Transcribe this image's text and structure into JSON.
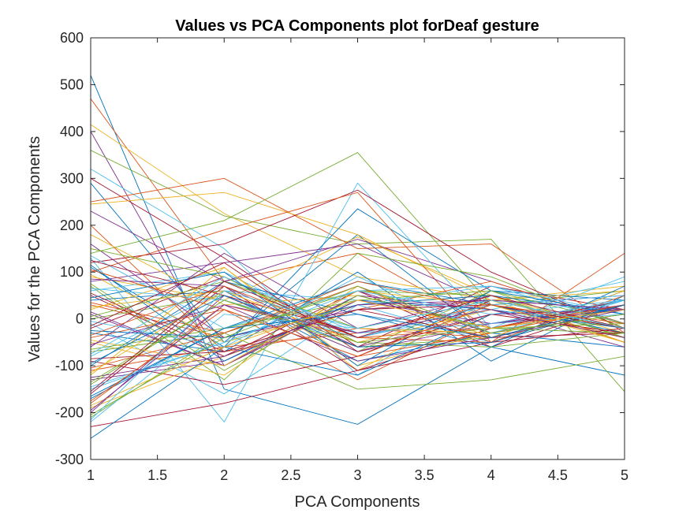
{
  "chart_data": {
    "type": "line",
    "title": "Values vs PCA Components plot forDeaf gesture",
    "xlabel": "PCA Components",
    "ylabel": "Values for the PCA Components",
    "xlim": [
      1,
      5
    ],
    "ylim": [
      -300,
      600
    ],
    "x": [
      1,
      2,
      3,
      4,
      5
    ],
    "x_ticks": [
      "1",
      "1.5",
      "2",
      "2.5",
      "3",
      "3.5",
      "4",
      "4.5",
      "5"
    ],
    "y_ticks": [
      "-300",
      "-200",
      "-100",
      "0",
      "100",
      "200",
      "300",
      "400",
      "500",
      "600"
    ],
    "grid": false,
    "legend": "none",
    "colors": [
      "#0072BD",
      "#D95319",
      "#EDB120",
      "#7E2F8E",
      "#77AC30",
      "#4DBEEE",
      "#A2142F"
    ],
    "series": [
      {
        "values": [
          520,
          -150,
          -225,
          -60,
          -120
        ]
      },
      {
        "values": [
          470,
          80,
          140,
          -20,
          30
        ]
      },
      {
        "values": [
          415,
          225,
          90,
          40,
          -50
        ]
      },
      {
        "values": [
          400,
          -100,
          60,
          -30,
          10
        ]
      },
      {
        "values": [
          360,
          220,
          160,
          170,
          -155
        ]
      },
      {
        "values": [
          320,
          150,
          -120,
          50,
          -40
        ]
      },
      {
        "values": [
          300,
          130,
          -60,
          70,
          20
        ]
      },
      {
        "values": [
          290,
          -50,
          180,
          -40,
          60
        ]
      },
      {
        "values": [
          250,
          300,
          150,
          160,
          -30
        ]
      },
      {
        "values": [
          245,
          270,
          180,
          40,
          70
        ]
      },
      {
        "values": [
          230,
          80,
          170,
          80,
          -10
        ]
      },
      {
        "values": [
          140,
          210,
          355,
          30,
          60
        ]
      },
      {
        "values": [
          130,
          -220,
          290,
          -20,
          90
        ]
      },
      {
        "values": [
          120,
          160,
          275,
          100,
          -20
        ]
      },
      {
        "values": [
          110,
          -60,
          235,
          60,
          40
        ]
      },
      {
        "values": [
          100,
          190,
          270,
          -50,
          140
        ]
      },
      {
        "values": [
          90,
          40,
          175,
          50,
          -30
        ]
      },
      {
        "values": [
          80,
          120,
          160,
          30,
          50
        ]
      },
      {
        "values": [
          70,
          -130,
          140,
          90,
          -20
        ]
      },
      {
        "values": [
          60,
          100,
          -40,
          20,
          80
        ]
      },
      {
        "values": [
          50,
          -80,
          60,
          -60,
          30
        ]
      },
      {
        "values": [
          40,
          60,
          -90,
          -30,
          -60
        ]
      },
      {
        "values": [
          30,
          -40,
          20,
          80,
          -10
        ]
      },
      {
        "values": [
          20,
          110,
          -110,
          40,
          60
        ]
      },
      {
        "values": [
          10,
          -100,
          50,
          -20,
          20
        ]
      },
      {
        "values": [
          0,
          50,
          -70,
          60,
          -40
        ]
      },
      {
        "values": [
          -10,
          -160,
          30,
          -50,
          40
        ]
      },
      {
        "values": [
          -20,
          90,
          -40,
          30,
          -20
        ]
      },
      {
        "values": [
          -30,
          -70,
          100,
          -90,
          50
        ]
      },
      {
        "values": [
          -40,
          20,
          -130,
          10,
          -30
        ]
      },
      {
        "values": [
          -50,
          -120,
          70,
          -40,
          60
        ]
      },
      {
        "values": [
          -60,
          140,
          -20,
          50,
          -50
        ]
      },
      {
        "values": [
          -70,
          -30,
          -150,
          -130,
          -80
        ]
      },
      {
        "values": [
          -80,
          60,
          40,
          -10,
          10
        ]
      },
      {
        "values": [
          -90,
          -140,
          -80,
          40,
          -20
        ]
      },
      {
        "values": [
          -100,
          80,
          10,
          -60,
          70
        ]
      },
      {
        "values": [
          -110,
          -60,
          -30,
          30,
          -40
        ]
      },
      {
        "values": [
          -120,
          110,
          -100,
          -30,
          30
        ]
      },
      {
        "values": [
          -130,
          -90,
          50,
          20,
          -60
        ]
      },
      {
        "values": [
          -140,
          40,
          -60,
          -40,
          20
        ]
      },
      {
        "values": [
          -150,
          -50,
          30,
          70,
          -10
        ]
      },
      {
        "values": [
          -160,
          70,
          -110,
          -20,
          40
        ]
      },
      {
        "values": [
          -170,
          -20,
          80,
          30,
          -30
        ]
      },
      {
        "values": [
          -180,
          30,
          -40,
          -50,
          50
        ]
      },
      {
        "values": [
          -190,
          -80,
          20,
          40,
          -20
        ]
      },
      {
        "values": [
          -200,
          50,
          -70,
          -10,
          30
        ]
      },
      {
        "values": [
          -210,
          -30,
          60,
          50,
          -40
        ]
      },
      {
        "values": [
          -220,
          10,
          -20,
          -30,
          10
        ]
      },
      {
        "values": [
          -230,
          -180,
          -110,
          -50,
          -20
        ]
      },
      {
        "values": [
          -255,
          -60,
          -120,
          10,
          20
        ]
      },
      {
        "values": [
          200,
          -70,
          -20,
          -40,
          30
        ]
      },
      {
        "values": [
          180,
          30,
          50,
          -20,
          -10
        ]
      },
      {
        "values": [
          160,
          -40,
          20,
          40,
          20
        ]
      },
      {
        "values": [
          150,
          90,
          -50,
          -60,
          -30
        ]
      },
      {
        "values": [
          135,
          -20,
          60,
          70,
          10
        ]
      },
      {
        "values": [
          125,
          50,
          -30,
          -10,
          40
        ]
      },
      {
        "values": [
          115,
          -90,
          40,
          20,
          -20
        ]
      },
      {
        "values": [
          105,
          20,
          -80,
          -30,
          30
        ]
      },
      {
        "values": [
          95,
          -50,
          30,
          50,
          -50
        ]
      },
      {
        "values": [
          85,
          70,
          -60,
          10,
          20
        ]
      },
      {
        "values": [
          75,
          -110,
          50,
          -20,
          -10
        ]
      },
      {
        "values": [
          65,
          40,
          -40,
          30,
          50
        ]
      },
      {
        "values": [
          55,
          -70,
          20,
          -40,
          -30
        ]
      },
      {
        "values": [
          45,
          100,
          -100,
          60,
          10
        ]
      },
      {
        "values": [
          35,
          -30,
          70,
          -50,
          30
        ]
      },
      {
        "values": [
          25,
          60,
          -50,
          20,
          -40
        ]
      },
      {
        "values": [
          15,
          -100,
          40,
          -10,
          20
        ]
      },
      {
        "values": [
          5,
          80,
          -20,
          40,
          -20
        ]
      },
      {
        "values": [
          -5,
          -60,
          90,
          -30,
          40
        ]
      },
      {
        "values": [
          -15,
          120,
          -70,
          10,
          -30
        ]
      },
      {
        "values": [
          -25,
          -40,
          30,
          50,
          10
        ]
      },
      {
        "values": [
          -35,
          70,
          -40,
          -20,
          30
        ]
      },
      {
        "values": [
          -45,
          -100,
          60,
          30,
          -50
        ]
      },
      {
        "values": [
          -55,
          30,
          -90,
          -40,
          20
        ]
      },
      {
        "values": [
          -65,
          -20,
          40,
          60,
          -10
        ]
      },
      {
        "values": [
          -75,
          90,
          -30,
          -10,
          40
        ]
      },
      {
        "values": [
          -85,
          -70,
          20,
          30,
          -20
        ]
      },
      {
        "values": [
          -95,
          50,
          -60,
          -50,
          30
        ]
      },
      {
        "values": [
          -105,
          -30,
          80,
          20,
          -40
        ]
      },
      {
        "values": [
          -115,
          60,
          -20,
          -30,
          10
        ]
      },
      {
        "values": [
          -125,
          -80,
          30,
          40,
          20
        ]
      },
      {
        "values": [
          -135,
          40,
          -50,
          -20,
          -30
        ]
      },
      {
        "values": [
          -145,
          -50,
          60,
          10,
          40
        ]
      },
      {
        "values": [
          -155,
          80,
          -40,
          50,
          -20
        ]
      },
      {
        "values": [
          -165,
          -20,
          10,
          -40,
          30
        ]
      },
      {
        "values": [
          -175,
          20,
          -80,
          30,
          -10
        ]
      },
      {
        "values": [
          -185,
          -60,
          40,
          -20,
          20
        ]
      },
      {
        "values": [
          -195,
          30,
          -30,
          20,
          -40
        ]
      },
      {
        "values": [
          -205,
          -40,
          70,
          -30,
          10
        ]
      },
      {
        "values": [
          -215,
          60,
          -20,
          40,
          -20
        ]
      }
    ]
  }
}
